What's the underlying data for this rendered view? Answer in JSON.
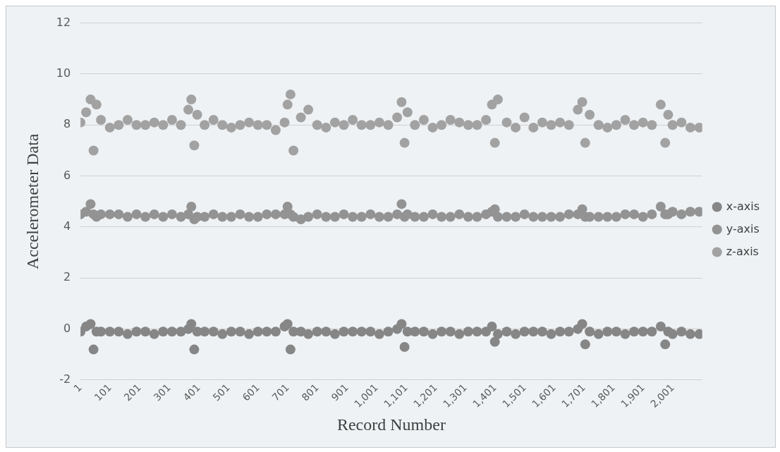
{
  "chart_data": {
    "type": "scatter",
    "xlabel": "Record Number",
    "ylabel": "Accelerometer Data",
    "x": [
      1,
      20,
      35,
      45,
      55,
      70,
      100,
      130,
      160,
      190,
      220,
      250,
      280,
      310,
      340,
      365,
      375,
      385,
      395,
      420,
      450,
      480,
      510,
      540,
      570,
      600,
      630,
      660,
      690,
      700,
      710,
      720,
      745,
      770,
      800,
      830,
      860,
      890,
      920,
      950,
      980,
      1010,
      1040,
      1070,
      1085,
      1095,
      1105,
      1130,
      1160,
      1190,
      1220,
      1250,
      1280,
      1310,
      1340,
      1370,
      1390,
      1400,
      1410,
      1440,
      1470,
      1500,
      1530,
      1560,
      1590,
      1620,
      1650,
      1680,
      1695,
      1705,
      1720,
      1750,
      1780,
      1810,
      1840,
      1870,
      1900,
      1930,
      1960,
      1975,
      1985,
      2000,
      2030,
      2060,
      2090
    ],
    "series": [
      {
        "name": "x-axis",
        "color": "#868686",
        "values": [
          -0.1,
          0.1,
          0.2,
          -0.8,
          -0.1,
          -0.1,
          -0.1,
          -0.1,
          -0.2,
          -0.1,
          -0.1,
          -0.2,
          -0.1,
          -0.1,
          -0.1,
          0.0,
          0.2,
          -0.8,
          -0.1,
          -0.1,
          -0.1,
          -0.2,
          -0.1,
          -0.1,
          -0.2,
          -0.1,
          -0.1,
          -0.1,
          0.1,
          0.2,
          -0.8,
          -0.1,
          -0.1,
          -0.2,
          -0.1,
          -0.1,
          -0.2,
          -0.1,
          -0.1,
          -0.1,
          -0.1,
          -0.2,
          -0.1,
          0.0,
          0.2,
          -0.7,
          -0.1,
          -0.1,
          -0.1,
          -0.2,
          -0.1,
          -0.1,
          -0.2,
          -0.1,
          -0.1,
          -0.1,
          0.1,
          -0.5,
          -0.2,
          -0.1,
          -0.2,
          -0.1,
          -0.1,
          -0.1,
          -0.2,
          -0.1,
          -0.1,
          0.0,
          0.2,
          -0.6,
          -0.1,
          -0.2,
          -0.1,
          -0.1,
          -0.2,
          -0.1,
          -0.1,
          -0.1,
          0.1,
          -0.6,
          -0.1,
          -0.2,
          -0.1,
          -0.2,
          -0.2
        ]
      },
      {
        "name": "y-axis",
        "color": "#939393",
        "values": [
          4.5,
          4.6,
          4.9,
          4.5,
          4.4,
          4.5,
          4.5,
          4.5,
          4.4,
          4.5,
          4.4,
          4.5,
          4.4,
          4.5,
          4.4,
          4.5,
          4.8,
          4.3,
          4.4,
          4.4,
          4.5,
          4.4,
          4.4,
          4.5,
          4.4,
          4.4,
          4.5,
          4.5,
          4.5,
          4.8,
          4.5,
          4.4,
          4.3,
          4.4,
          4.5,
          4.4,
          4.4,
          4.5,
          4.4,
          4.4,
          4.5,
          4.4,
          4.4,
          4.5,
          4.9,
          4.4,
          4.5,
          4.4,
          4.4,
          4.5,
          4.4,
          4.4,
          4.5,
          4.4,
          4.4,
          4.5,
          4.6,
          4.7,
          4.4,
          4.4,
          4.4,
          4.5,
          4.4,
          4.4,
          4.4,
          4.4,
          4.5,
          4.5,
          4.7,
          4.4,
          4.4,
          4.4,
          4.4,
          4.4,
          4.5,
          4.5,
          4.4,
          4.5,
          4.8,
          4.5,
          4.5,
          4.6,
          4.5,
          4.6,
          4.6
        ]
      },
      {
        "name": "z-axis",
        "color": "#a2a2a2",
        "values": [
          8.1,
          8.5,
          9.0,
          7.0,
          8.8,
          8.2,
          7.9,
          8.0,
          8.2,
          8.0,
          8.0,
          8.1,
          8.0,
          8.2,
          8.0,
          8.6,
          9.0,
          7.2,
          8.4,
          8.0,
          8.2,
          8.0,
          7.9,
          8.0,
          8.1,
          8.0,
          8.0,
          7.8,
          8.1,
          8.8,
          9.2,
          7.0,
          8.3,
          8.6,
          8.0,
          7.9,
          8.1,
          8.0,
          8.2,
          8.0,
          8.0,
          8.1,
          8.0,
          8.3,
          8.9,
          7.3,
          8.5,
          8.0,
          8.2,
          7.9,
          8.0,
          8.2,
          8.1,
          8.0,
          8.0,
          8.2,
          8.8,
          7.3,
          9.0,
          8.1,
          7.9,
          8.3,
          7.9,
          8.1,
          8.0,
          8.1,
          8.0,
          8.6,
          8.9,
          7.3,
          8.4,
          8.0,
          7.9,
          8.0,
          8.2,
          8.0,
          8.1,
          8.0,
          8.8,
          7.3,
          8.4,
          8.0,
          8.1,
          7.9,
          7.9
        ]
      }
    ],
    "xlim": [
      1,
      2100
    ],
    "xticks": [
      1,
      101,
      201,
      301,
      401,
      501,
      601,
      701,
      801,
      901,
      {
        "value": 1001,
        "label": "1,001"
      },
      {
        "value": 1101,
        "label": "1,101"
      },
      {
        "value": 1201,
        "label": "1,201"
      },
      {
        "value": 1301,
        "label": "1,301"
      },
      {
        "value": 1401,
        "label": "1,401"
      },
      {
        "value": 1501,
        "label": "1,501"
      },
      {
        "value": 1601,
        "label": "1,601"
      },
      {
        "value": 1701,
        "label": "1,701"
      },
      {
        "value": 1801,
        "label": "1,801"
      },
      {
        "value": 1901,
        "label": "1,901"
      },
      {
        "value": 2001,
        "label": "2,001"
      }
    ],
    "ylim": [
      -2,
      12
    ],
    "yticks": [
      -2,
      0,
      2,
      4,
      6,
      8,
      10,
      12
    ],
    "grid": "y",
    "legend": "right",
    "marker": "circle"
  }
}
